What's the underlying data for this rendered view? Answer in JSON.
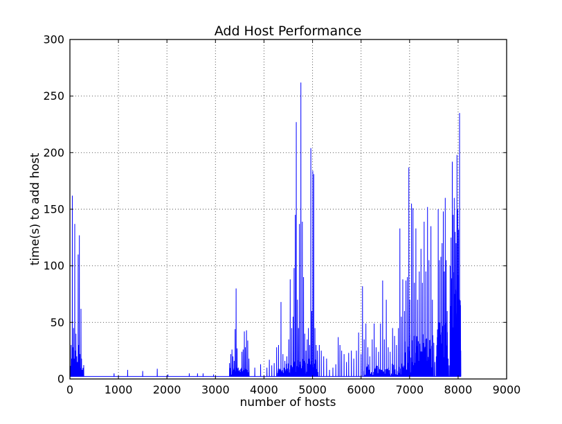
{
  "chart_data": {
    "type": "line",
    "title": "Add Host Performance",
    "xlabel": "number of hosts",
    "ylabel": "time(s) to add host",
    "xlim": [
      0,
      9000
    ],
    "ylim": [
      0,
      300
    ],
    "xticks": [
      0,
      1000,
      2000,
      3000,
      4000,
      5000,
      6000,
      7000,
      8000,
      9000
    ],
    "yticks": [
      0,
      50,
      100,
      150,
      200,
      250,
      300
    ],
    "grid": "dotted",
    "legend": "none",
    "line_color": "#0000ff",
    "background_color": "#ffffff",
    "baseline_time_s": 2.2,
    "data_start_x": 0,
    "data_end_x": 8060,
    "seed": 42,
    "spikes": [
      [
        15,
        10
      ],
      [
        25,
        30
      ],
      [
        35,
        18
      ],
      [
        50,
        162
      ],
      [
        62,
        28
      ],
      [
        75,
        45
      ],
      [
        88,
        18
      ],
      [
        100,
        137
      ],
      [
        112,
        25
      ],
      [
        125,
        40
      ],
      [
        140,
        20
      ],
      [
        155,
        15
      ],
      [
        170,
        110
      ],
      [
        182,
        30
      ],
      [
        195,
        127
      ],
      [
        208,
        22
      ],
      [
        228,
        62
      ],
      [
        240,
        18
      ],
      [
        255,
        8
      ],
      [
        270,
        6
      ],
      [
        285,
        4
      ],
      [
        910,
        5
      ],
      [
        1190,
        8
      ],
      [
        1500,
        7
      ],
      [
        1800,
        9
      ],
      [
        2020,
        4
      ],
      [
        2460,
        5
      ],
      [
        2630,
        5
      ],
      [
        2745,
        5
      ],
      [
        2960,
        4
      ],
      [
        3290,
        14
      ],
      [
        3315,
        22
      ],
      [
        3340,
        26
      ],
      [
        3360,
        20
      ],
      [
        3385,
        16
      ],
      [
        3405,
        44
      ],
      [
        3425,
        80
      ],
      [
        3445,
        27
      ],
      [
        3470,
        10
      ],
      [
        3545,
        24
      ],
      [
        3570,
        26
      ],
      [
        3595,
        42
      ],
      [
        3615,
        28
      ],
      [
        3640,
        43
      ],
      [
        3665,
        34
      ],
      [
        3690,
        18
      ],
      [
        3810,
        10
      ],
      [
        3930,
        13
      ],
      [
        4060,
        10
      ],
      [
        4110,
        17
      ],
      [
        4160,
        12
      ],
      [
        4210,
        14
      ],
      [
        4260,
        28
      ],
      [
        4300,
        30
      ],
      [
        4350,
        68
      ],
      [
        4390,
        22
      ],
      [
        4430,
        16
      ],
      [
        4470,
        20
      ],
      [
        4510,
        35
      ],
      [
        4540,
        88
      ],
      [
        4570,
        45
      ],
      [
        4600,
        55
      ],
      [
        4620,
        98
      ],
      [
        4645,
        145
      ],
      [
        4665,
        227
      ],
      [
        4690,
        70
      ],
      [
        4710,
        45
      ],
      [
        4730,
        137
      ],
      [
        4760,
        262
      ],
      [
        4790,
        139
      ],
      [
        4815,
        90
      ],
      [
        4840,
        40
      ],
      [
        4865,
        25
      ],
      [
        4890,
        35
      ],
      [
        4915,
        45
      ],
      [
        4940,
        30
      ],
      [
        4965,
        204
      ],
      [
        4985,
        60
      ],
      [
        5005,
        184
      ],
      [
        5025,
        181
      ],
      [
        5050,
        45
      ],
      [
        5075,
        30
      ],
      [
        5100,
        25
      ],
      [
        5140,
        30
      ],
      [
        5180,
        25
      ],
      [
        5230,
        20
      ],
      [
        5290,
        18
      ],
      [
        5350,
        8
      ],
      [
        5420,
        10
      ],
      [
        5480,
        13
      ],
      [
        5530,
        37
      ],
      [
        5565,
        30
      ],
      [
        5600,
        25
      ],
      [
        5650,
        22
      ],
      [
        5700,
        15
      ],
      [
        5745,
        23
      ],
      [
        5800,
        25
      ],
      [
        5850,
        18
      ],
      [
        5905,
        25
      ],
      [
        5950,
        41
      ],
      [
        6000,
        22
      ],
      [
        6030,
        82
      ],
      [
        6065,
        35
      ],
      [
        6100,
        49
      ],
      [
        6140,
        28
      ],
      [
        6180,
        20
      ],
      [
        6230,
        35
      ],
      [
        6270,
        49
      ],
      [
        6310,
        28
      ],
      [
        6360,
        24
      ],
      [
        6400,
        49
      ],
      [
        6445,
        87
      ],
      [
        6480,
        35
      ],
      [
        6520,
        70
      ],
      [
        6560,
        28
      ],
      [
        6600,
        24
      ],
      [
        6650,
        45
      ],
      [
        6690,
        38
      ],
      [
        6730,
        30
      ],
      [
        6770,
        45
      ],
      [
        6800,
        133
      ],
      [
        6830,
        55
      ],
      [
        6860,
        88
      ],
      [
        6895,
        60
      ],
      [
        6925,
        87
      ],
      [
        6955,
        90
      ],
      [
        6985,
        187
      ],
      [
        7005,
        70
      ],
      [
        7040,
        155
      ],
      [
        7070,
        151
      ],
      [
        7100,
        85
      ],
      [
        7130,
        133
      ],
      [
        7165,
        70
      ],
      [
        7200,
        95
      ],
      [
        7235,
        115
      ],
      [
        7265,
        85
      ],
      [
        7300,
        139
      ],
      [
        7335,
        95
      ],
      [
        7370,
        152
      ],
      [
        7400,
        105
      ],
      [
        7440,
        135
      ],
      [
        7470,
        70
      ],
      [
        7500,
        32
      ],
      [
        7520,
        15
      ],
      [
        7550,
        20
      ],
      [
        7590,
        150
      ],
      [
        7615,
        105
      ],
      [
        7645,
        108
      ],
      [
        7670,
        120
      ],
      [
        7695,
        148
      ],
      [
        7715,
        95
      ],
      [
        7735,
        160
      ],
      [
        7755,
        105
      ],
      [
        7775,
        60
      ],
      [
        7795,
        18
      ],
      [
        7815,
        12
      ],
      [
        7835,
        100
      ],
      [
        7855,
        125
      ],
      [
        7880,
        192
      ],
      [
        7900,
        145
      ],
      [
        7920,
        160
      ],
      [
        7940,
        130
      ],
      [
        7958,
        120
      ],
      [
        7977,
        198
      ],
      [
        7992,
        150
      ],
      [
        8010,
        132
      ],
      [
        8030,
        235
      ],
      [
        8045,
        65
      ],
      [
        8055,
        25
      ]
    ],
    "dense_bands": [
      {
        "from": 5,
        "to": 290,
        "min": 3,
        "max": 13
      },
      {
        "from": 3290,
        "to": 3700,
        "min": 3,
        "max": 10
      },
      {
        "from": 4280,
        "to": 4520,
        "min": 3,
        "max": 10
      },
      {
        "from": 4450,
        "to": 5110,
        "min": 4,
        "max": 18
      },
      {
        "from": 6060,
        "to": 6900,
        "min": 3,
        "max": 14
      },
      {
        "from": 6900,
        "to": 7490,
        "min": 5,
        "max": 40
      },
      {
        "from": 7560,
        "to": 7780,
        "min": 6,
        "max": 55
      },
      {
        "from": 7840,
        "to": 8052,
        "min": 20,
        "max": 95
      }
    ]
  }
}
